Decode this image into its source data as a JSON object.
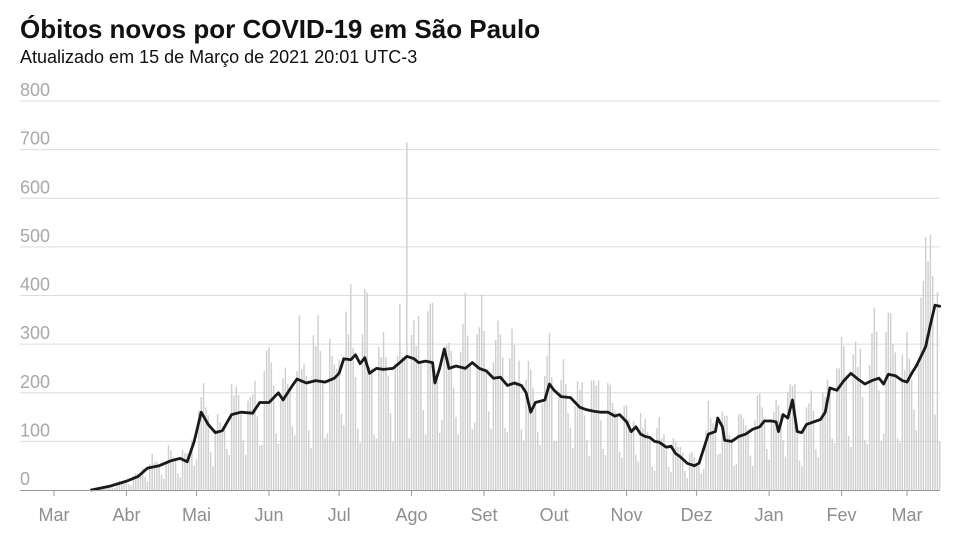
{
  "chart_data": {
    "type": "bar",
    "title": "Óbitos novos por COVID-19 em São Paulo",
    "subtitle": "Atualizado em 15 de Março de 2021 20:01 UTC-3",
    "series": [
      {
        "kind": "bar",
        "description": "daily new deaths"
      },
      {
        "kind": "line",
        "description": "7-day moving average"
      }
    ],
    "ylim": [
      0,
      800
    ],
    "yticks": [
      0,
      100,
      200,
      300,
      400,
      500,
      600,
      700,
      800
    ],
    "grid": true,
    "x_start": "2020-03-01",
    "x_end": "2021-03-15",
    "month_ticks": [
      {
        "label": "Mar",
        "date": "2020-03-01"
      },
      {
        "label": "Abr",
        "date": "2020-04-01"
      },
      {
        "label": "Mai",
        "date": "2020-05-01"
      },
      {
        "label": "Jun",
        "date": "2020-06-01"
      },
      {
        "label": "Jul",
        "date": "2020-07-01"
      },
      {
        "label": "Ago",
        "date": "2020-08-01"
      },
      {
        "label": "Set",
        "date": "2020-09-01"
      },
      {
        "label": "Out",
        "date": "2020-10-01"
      },
      {
        "label": "Nov",
        "date": "2020-11-01"
      },
      {
        "label": "Dez",
        "date": "2020-12-01"
      },
      {
        "label": "Jan",
        "date": "2021-01-01"
      },
      {
        "label": "Fev",
        "date": "2021-02-01"
      },
      {
        "label": "Mar",
        "date": "2021-03-01"
      }
    ],
    "moving_average_points": [
      [
        "2020-03-17",
        0
      ],
      [
        "2020-03-25",
        8
      ],
      [
        "2020-04-01",
        18
      ],
      [
        "2020-04-06",
        28
      ],
      [
        "2020-04-10",
        45
      ],
      [
        "2020-04-15",
        50
      ],
      [
        "2020-04-20",
        60
      ],
      [
        "2020-04-24",
        65
      ],
      [
        "2020-04-27",
        58
      ],
      [
        "2020-04-30",
        100
      ],
      [
        "2020-05-03",
        160
      ],
      [
        "2020-05-06",
        135
      ],
      [
        "2020-05-09",
        118
      ],
      [
        "2020-05-12",
        122
      ],
      [
        "2020-05-16",
        155
      ],
      [
        "2020-05-20",
        160
      ],
      [
        "2020-05-25",
        158
      ],
      [
        "2020-05-28",
        180
      ],
      [
        "2020-06-01",
        180
      ],
      [
        "2020-06-05",
        200
      ],
      [
        "2020-06-07",
        185
      ],
      [
        "2020-06-11",
        215
      ],
      [
        "2020-06-13",
        228
      ],
      [
        "2020-06-17",
        220
      ],
      [
        "2020-06-21",
        225
      ],
      [
        "2020-06-25",
        222
      ],
      [
        "2020-06-29",
        230
      ],
      [
        "2020-07-01",
        240
      ],
      [
        "2020-07-03",
        270
      ],
      [
        "2020-07-06",
        268
      ],
      [
        "2020-07-08",
        278
      ],
      [
        "2020-07-10",
        260
      ],
      [
        "2020-07-12",
        272
      ],
      [
        "2020-07-14",
        240
      ],
      [
        "2020-07-17",
        250
      ],
      [
        "2020-07-20",
        248
      ],
      [
        "2020-07-24",
        250
      ],
      [
        "2020-07-27",
        262
      ],
      [
        "2020-07-30",
        275
      ],
      [
        "2020-08-02",
        270
      ],
      [
        "2020-08-04",
        262
      ],
      [
        "2020-08-07",
        265
      ],
      [
        "2020-08-10",
        262
      ],
      [
        "2020-08-11",
        220
      ],
      [
        "2020-08-13",
        250
      ],
      [
        "2020-08-15",
        290
      ],
      [
        "2020-08-17",
        250
      ],
      [
        "2020-08-20",
        255
      ],
      [
        "2020-08-24",
        250
      ],
      [
        "2020-08-27",
        262
      ],
      [
        "2020-08-30",
        250
      ],
      [
        "2020-09-02",
        245
      ],
      [
        "2020-09-05",
        230
      ],
      [
        "2020-09-08",
        232
      ],
      [
        "2020-09-11",
        215
      ],
      [
        "2020-09-14",
        220
      ],
      [
        "2020-09-17",
        215
      ],
      [
        "2020-09-19",
        200
      ],
      [
        "2020-09-21",
        160
      ],
      [
        "2020-09-23",
        180
      ],
      [
        "2020-09-27",
        185
      ],
      [
        "2020-09-29",
        218
      ],
      [
        "2020-10-01",
        205
      ],
      [
        "2020-10-04",
        192
      ],
      [
        "2020-10-08",
        190
      ],
      [
        "2020-10-12",
        170
      ],
      [
        "2020-10-15",
        165
      ],
      [
        "2020-10-18",
        162
      ],
      [
        "2020-10-21",
        160
      ],
      [
        "2020-10-24",
        160
      ],
      [
        "2020-10-27",
        152
      ],
      [
        "2020-10-29",
        155
      ],
      [
        "2020-11-01",
        140
      ],
      [
        "2020-11-03",
        120
      ],
      [
        "2020-11-05",
        130
      ],
      [
        "2020-11-07",
        115
      ],
      [
        "2020-11-09",
        110
      ],
      [
        "2020-11-11",
        108
      ],
      [
        "2020-11-13",
        100
      ],
      [
        "2020-11-15",
        98
      ],
      [
        "2020-11-18",
        88
      ],
      [
        "2020-11-20",
        90
      ],
      [
        "2020-11-22",
        75
      ],
      [
        "2020-11-24",
        68
      ],
      [
        "2020-11-27",
        55
      ],
      [
        "2020-11-30",
        50
      ],
      [
        "2020-12-02",
        55
      ],
      [
        "2020-12-04",
        85
      ],
      [
        "2020-12-06",
        115
      ],
      [
        "2020-12-09",
        120
      ],
      [
        "2020-12-10",
        148
      ],
      [
        "2020-12-12",
        130
      ],
      [
        "2020-12-13",
        102
      ],
      [
        "2020-12-16",
        100
      ],
      [
        "2020-12-19",
        110
      ],
      [
        "2020-12-22",
        115
      ],
      [
        "2020-12-25",
        125
      ],
      [
        "2020-12-28",
        130
      ],
      [
        "2020-12-30",
        142
      ],
      [
        "2021-01-02",
        142
      ],
      [
        "2021-01-04",
        140
      ],
      [
        "2021-01-05",
        120
      ],
      [
        "2021-01-07",
        155
      ],
      [
        "2021-01-09",
        148
      ],
      [
        "2021-01-11",
        185
      ],
      [
        "2021-01-13",
        120
      ],
      [
        "2021-01-15",
        118
      ],
      [
        "2021-01-17",
        135
      ],
      [
        "2021-01-20",
        140
      ],
      [
        "2021-01-23",
        145
      ],
      [
        "2021-01-25",
        160
      ],
      [
        "2021-01-27",
        210
      ],
      [
        "2021-01-30",
        205
      ],
      [
        "2021-02-02",
        225
      ],
      [
        "2021-02-05",
        240
      ],
      [
        "2021-02-08",
        228
      ],
      [
        "2021-02-11",
        218
      ],
      [
        "2021-02-14",
        225
      ],
      [
        "2021-02-17",
        230
      ],
      [
        "2021-02-19",
        218
      ],
      [
        "2021-02-21",
        238
      ],
      [
        "2021-02-24",
        235
      ],
      [
        "2021-02-27",
        225
      ],
      [
        "2021-03-01",
        222
      ],
      [
        "2021-03-03",
        240
      ],
      [
        "2021-03-05",
        255
      ],
      [
        "2021-03-07",
        275
      ],
      [
        "2021-03-09",
        295
      ],
      [
        "2021-03-11",
        340
      ],
      [
        "2021-03-13",
        380
      ],
      [
        "2021-03-15",
        378
      ]
    ],
    "notable_daily_values": [
      [
        "2020-07-30",
        715
      ],
      [
        "2021-03-09",
        520
      ],
      [
        "2021-03-10",
        470
      ],
      [
        "2021-03-11",
        525
      ],
      [
        "2021-03-12",
        440
      ],
      [
        "2021-03-13",
        155
      ],
      [
        "2021-03-15",
        100
      ]
    ]
  }
}
